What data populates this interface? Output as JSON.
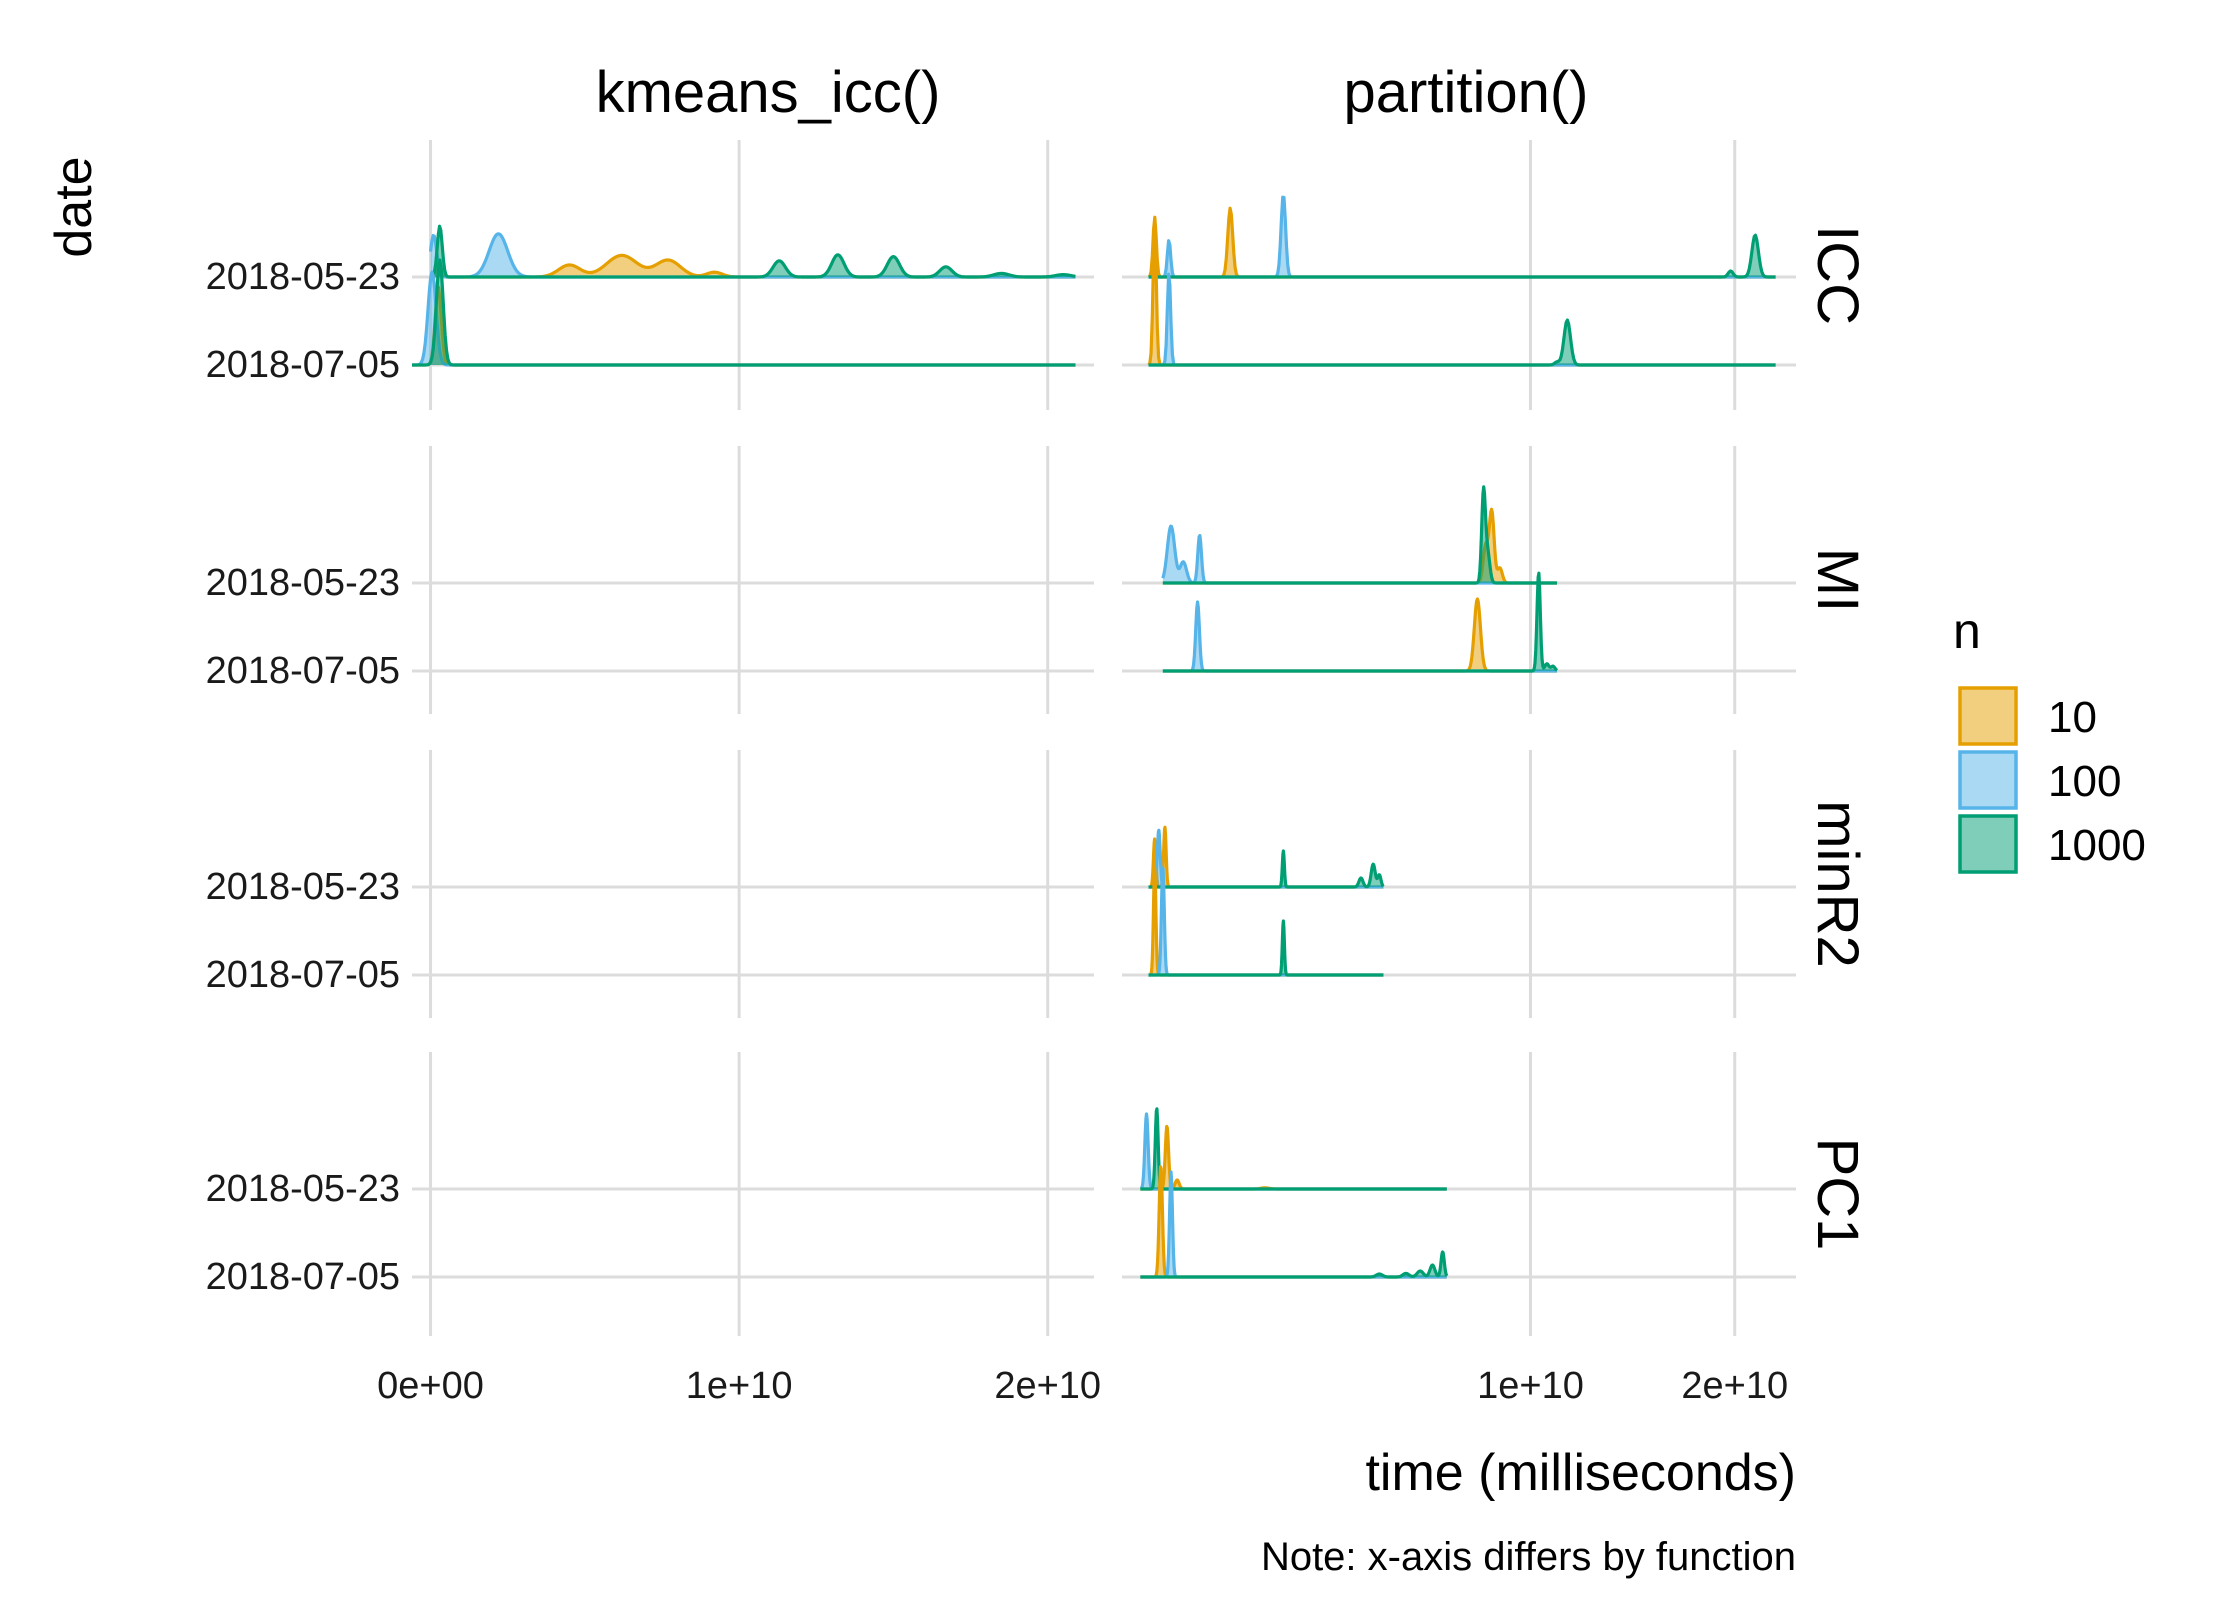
{
  "chart_data": {
    "type": "ridgeline",
    "title": "",
    "xlabel": "time (milliseconds)",
    "ylabel": "date",
    "caption": "Note: x-axis differs by function",
    "columns": [
      "kmeans_icc()",
      "partition()"
    ],
    "rows": [
      "ICC",
      "MI",
      "minR2",
      "PC1"
    ],
    "dates": [
      "2018-05-23",
      "2018-07-05"
    ],
    "x_ticks": [
      [
        "0e+00",
        "1e+10",
        "2e+10"
      ],
      [
        "1e+10",
        "2e+10"
      ]
    ],
    "x_tick_values": [
      [
        0,
        10000000000,
        20000000000
      ],
      [
        10000000000,
        20000000000
      ]
    ],
    "xlim": [
      [
        -600000000,
        21500000000
      ],
      [
        -10000000000,
        23000000000
      ]
    ],
    "legend": {
      "title": "n",
      "position": "right",
      "items": [
        {
          "label": "10",
          "color": "#E69F00"
        },
        {
          "label": "100",
          "color": "#56B4E9"
        },
        {
          "label": "1000",
          "color": "#009E73"
        }
      ]
    },
    "grid": true,
    "series": [
      {
        "col": 0,
        "row": "ICC",
        "date": "2018-05-23",
        "n": "10",
        "range": [
          0,
          20900000000
        ],
        "peaks": [
          [
            300000000,
            0.2,
            60000000
          ],
          [
            4500000000,
            0.2,
            350000000
          ],
          [
            6200000000,
            0.36,
            500000000
          ],
          [
            7700000000,
            0.28,
            400000000
          ],
          [
            9200000000,
            0.08,
            250000000
          ]
        ]
      },
      {
        "col": 0,
        "row": "ICC",
        "date": "2018-05-23",
        "n": "100",
        "range": [
          0,
          20900000000
        ],
        "peaks": [
          [
            100000000,
            0.7,
            100000000
          ],
          [
            2200000000,
            0.72,
            300000000
          ]
        ]
      },
      {
        "col": 0,
        "row": "ICC",
        "date": "2018-05-23",
        "n": "1000",
        "range": [
          0,
          20900000000
        ],
        "peaks": [
          [
            300000000,
            0.85,
            80000000
          ],
          [
            11300000000,
            0.27,
            200000000
          ],
          [
            13200000000,
            0.37,
            200000000
          ],
          [
            15000000000,
            0.34,
            200000000
          ],
          [
            16700000000,
            0.17,
            200000000
          ],
          [
            18500000000,
            0.06,
            250000000
          ],
          [
            20500000000,
            0.04,
            250000000
          ]
        ]
      },
      {
        "col": 0,
        "row": "ICC",
        "date": "2018-07-05",
        "n": "10",
        "range": [
          -600000000,
          20900000000
        ],
        "peaks": [
          [
            250000000,
            1.3,
            100000000
          ]
        ]
      },
      {
        "col": 0,
        "row": "ICC",
        "date": "2018-07-05",
        "n": "100",
        "range": [
          -600000000,
          20900000000
        ],
        "peaks": [
          [
            50000000,
            1.55,
            130000000
          ]
        ]
      },
      {
        "col": 0,
        "row": "ICC",
        "date": "2018-07-05",
        "n": "1000",
        "range": [
          -600000000,
          20900000000
        ],
        "peaks": [
          [
            300000000,
            1.75,
            110000000
          ]
        ]
      },
      {
        "col": 1,
        "row": "ICC",
        "date": "2018-05-23",
        "n": "10",
        "range": [
          -8700000000,
          22000000000
        ],
        "peaks": [
          [
            -8400000000,
            1.0,
            80000000
          ],
          [
            -4700000000,
            1.15,
            120000000
          ]
        ]
      },
      {
        "col": 1,
        "row": "ICC",
        "date": "2018-05-23",
        "n": "100",
        "range": [
          -8700000000,
          22000000000
        ],
        "peaks": [
          [
            -7700000000,
            0.62,
            80000000
          ],
          [
            -2100000000,
            1.38,
            110000000
          ]
        ]
      },
      {
        "col": 1,
        "row": "ICC",
        "date": "2018-05-23",
        "n": "1000",
        "range": [
          -8700000000,
          22000000000
        ],
        "peaks": [
          [
            19800000000,
            0.1,
            120000000
          ],
          [
            21000000000,
            0.7,
            160000000
          ]
        ]
      },
      {
        "col": 1,
        "row": "ICC",
        "date": "2018-07-05",
        "n": "10",
        "range": [
          -8700000000,
          22000000000
        ],
        "peaks": [
          [
            -8400000000,
            2.3,
            80000000
          ]
        ]
      },
      {
        "col": 1,
        "row": "ICC",
        "date": "2018-07-05",
        "n": "100",
        "range": [
          -8700000000,
          22000000000
        ],
        "peaks": [
          [
            -7700000000,
            1.55,
            80000000
          ]
        ]
      },
      {
        "col": 1,
        "row": "ICC",
        "date": "2018-07-05",
        "n": "1000",
        "range": [
          -8700000000,
          22000000000
        ],
        "peaks": [
          [
            11800000000,
            0.75,
            160000000
          ],
          [
            11300000000,
            0.05,
            120000000
          ]
        ]
      },
      {
        "col": 1,
        "row": "MI",
        "date": "2018-05-23",
        "n": "10",
        "range": [
          -8000000000,
          11300000000
        ],
        "peaks": [
          [
            8100000000,
            1.2,
            120000000
          ],
          [
            7800000000,
            0.6,
            120000000
          ],
          [
            8500000000,
            0.25,
            120000000
          ]
        ]
      },
      {
        "col": 1,
        "row": "MI",
        "date": "2018-05-23",
        "n": "100",
        "range": [
          -8000000000,
          11300000000
        ],
        "peaks": [
          [
            -7600000000,
            0.95,
            180000000
          ],
          [
            -7000000000,
            0.35,
            160000000
          ],
          [
            -6200000000,
            0.8,
            90000000
          ]
        ]
      },
      {
        "col": 1,
        "row": "MI",
        "date": "2018-05-23",
        "n": "1000",
        "range": [
          -8000000000,
          11300000000
        ],
        "peaks": [
          [
            7700000000,
            1.5,
            90000000
          ],
          [
            7900000000,
            0.5,
            110000000
          ]
        ]
      },
      {
        "col": 1,
        "row": "MI",
        "date": "2018-07-05",
        "n": "10",
        "range": [
          -8000000000,
          11300000000
        ],
        "peaks": [
          [
            7400000000,
            1.2,
            150000000
          ]
        ]
      },
      {
        "col": 1,
        "row": "MI",
        "date": "2018-07-05",
        "n": "100",
        "range": [
          -8000000000,
          11300000000
        ],
        "peaks": [
          [
            -6300000000,
            1.15,
            90000000
          ]
        ]
      },
      {
        "col": 1,
        "row": "MI",
        "date": "2018-07-05",
        "n": "1000",
        "range": [
          -8000000000,
          11300000000
        ],
        "peaks": [
          [
            10400000000,
            1.65,
            80000000
          ],
          [
            10800000000,
            0.12,
            100000000
          ],
          [
            11100000000,
            0.08,
            100000000
          ]
        ]
      },
      {
        "col": 1,
        "row": "minR2",
        "date": "2018-05-23",
        "n": "10",
        "range": [
          -8700000000,
          2800000000
        ],
        "peaks": [
          [
            -7900000000,
            1.0,
            60000000
          ],
          [
            -8400000000,
            0.8,
            60000000
          ]
        ]
      },
      {
        "col": 1,
        "row": "minR2",
        "date": "2018-05-23",
        "n": "100",
        "range": [
          -8700000000,
          2800000000
        ],
        "peaks": [
          [
            -8200000000,
            0.95,
            70000000
          ]
        ]
      },
      {
        "col": 1,
        "row": "minR2",
        "date": "2018-05-23",
        "n": "1000",
        "range": [
          -8700000000,
          2800000000
        ],
        "peaks": [
          [
            -2100000000,
            0.6,
            50000000
          ],
          [
            1700000000,
            0.15,
            100000000
          ],
          [
            2300000000,
            0.38,
            100000000
          ],
          [
            2600000000,
            0.2,
            80000000
          ]
        ]
      },
      {
        "col": 1,
        "row": "minR2",
        "date": "2018-07-05",
        "n": "10",
        "range": [
          -8700000000,
          2800000000
        ],
        "peaks": [
          [
            -8400000000,
            1.8,
            60000000
          ]
        ]
      },
      {
        "col": 1,
        "row": "minR2",
        "date": "2018-07-05",
        "n": "100",
        "range": [
          -8700000000,
          2800000000
        ],
        "peaks": [
          [
            -8000000000,
            1.8,
            70000000
          ]
        ]
      },
      {
        "col": 1,
        "row": "minR2",
        "date": "2018-07-05",
        "n": "1000",
        "range": [
          -8700000000,
          2800000000
        ],
        "peaks": [
          [
            -2100000000,
            0.9,
            50000000
          ]
        ]
      },
      {
        "col": 1,
        "row": "PC1",
        "date": "2018-05-23",
        "n": "10",
        "range": [
          -9100000000,
          5900000000
        ],
        "peaks": [
          [
            -7800000000,
            1.05,
            80000000
          ],
          [
            -7300000000,
            0.15,
            100000000
          ],
          [
            -3000000000,
            0.02,
            200000000
          ]
        ]
      },
      {
        "col": 1,
        "row": "PC1",
        "date": "2018-05-23",
        "n": "100",
        "range": [
          -9100000000,
          5900000000
        ],
        "peaks": [
          [
            -8800000000,
            1.25,
            80000000
          ]
        ]
      },
      {
        "col": 1,
        "row": "PC1",
        "date": "2018-05-23",
        "n": "1000",
        "range": [
          -9100000000,
          5900000000
        ],
        "peaks": [
          [
            -8300000000,
            1.35,
            70000000
          ]
        ]
      },
      {
        "col": 1,
        "row": "PC1",
        "date": "2018-07-05",
        "n": "10",
        "range": [
          -9100000000,
          5900000000
        ],
        "peaks": [
          [
            -8100000000,
            1.85,
            80000000
          ]
        ]
      },
      {
        "col": 1,
        "row": "PC1",
        "date": "2018-07-05",
        "n": "100",
        "range": [
          -9100000000,
          5900000000
        ],
        "peaks": [
          [
            -7600000000,
            1.75,
            70000000
          ]
        ]
      },
      {
        "col": 1,
        "row": "PC1",
        "date": "2018-07-05",
        "n": "1000",
        "range": [
          -9100000000,
          5900000000
        ],
        "peaks": [
          [
            5700000000,
            0.42,
            80000000
          ],
          [
            5200000000,
            0.2,
            120000000
          ],
          [
            4600000000,
            0.1,
            150000000
          ],
          [
            3900000000,
            0.06,
            150000000
          ],
          [
            2600000000,
            0.05,
            150000000
          ]
        ]
      }
    ]
  }
}
